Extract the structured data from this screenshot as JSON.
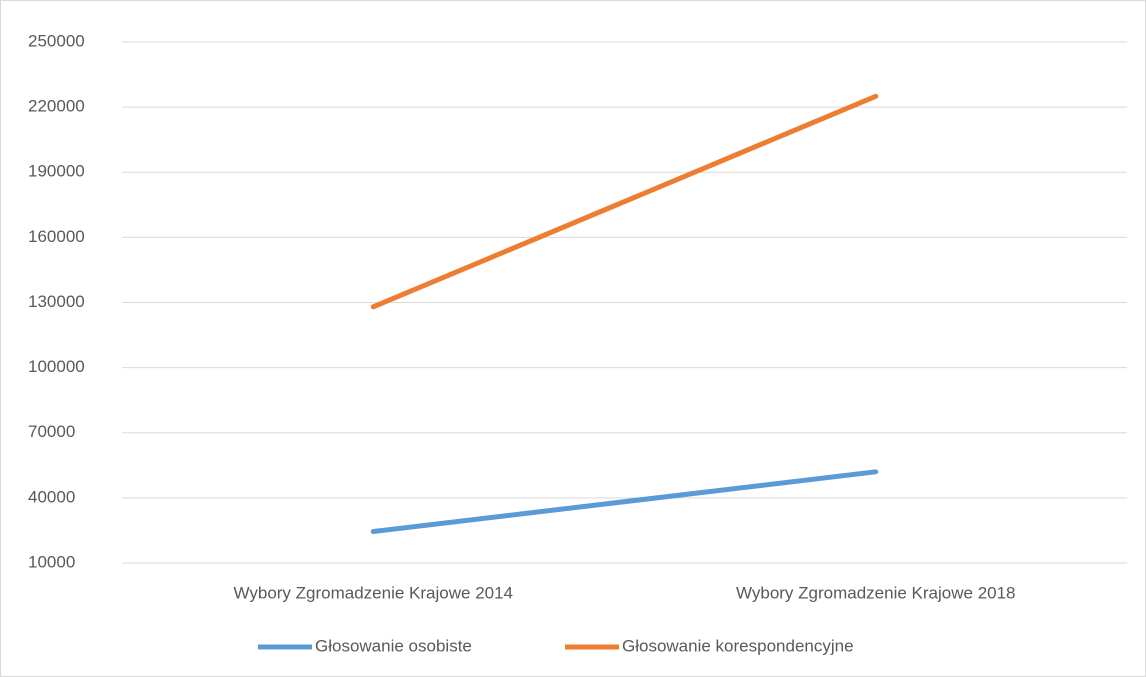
{
  "chart_data": {
    "type": "line",
    "categories": [
      "Wybory Zgromadzenie Krajowe 2014",
      "Wybory Zgromadzenie Krajowe 2018"
    ],
    "series": [
      {
        "name": "Głosowanie osobiste",
        "color": "#5b9bd5",
        "values": [
          24500,
          52000
        ]
      },
      {
        "name": "Głosowanie korespondencyjne",
        "color": "#ed7d31",
        "values": [
          128000,
          225000
        ]
      }
    ],
    "ylim": [
      10000,
      250000
    ],
    "yticks": [
      10000,
      40000,
      70000,
      100000,
      130000,
      160000,
      190000,
      220000,
      250000
    ],
    "grid": true,
    "legend": "bottom"
  }
}
